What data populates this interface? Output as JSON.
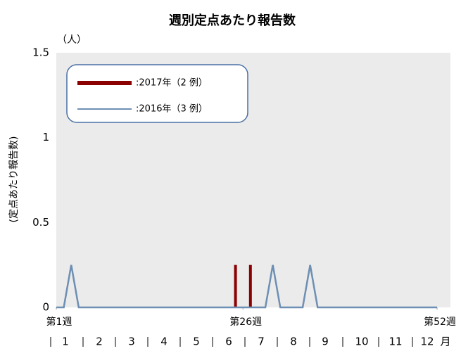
{
  "chart_data": {
    "type": "line",
    "title": "週別定点あたり報告数",
    "y_unit": "（人）",
    "y_label": "(定点あたり報告数)",
    "xlim": [
      1,
      52
    ],
    "xticks": [
      {
        "value": 1,
        "label": "第1週"
      },
      {
        "value": 26,
        "label": "第26週"
      },
      {
        "value": 52,
        "label": "第52週"
      }
    ],
    "ylim": [
      0,
      1.5
    ],
    "yticks": [
      0,
      0.5,
      1,
      1.5
    ],
    "month_labels": [
      "1",
      "2",
      "3",
      "4",
      "5",
      "6",
      "7",
      "8",
      "9",
      "10",
      "11",
      "12"
    ],
    "month_unit": "月",
    "series": [
      {
        "name": ":2017年（2 例）",
        "color": "#8b0000",
        "style": "bar",
        "x": [
          25,
          27
        ],
        "values": [
          0.25,
          0.25
        ]
      },
      {
        "name": ":2016年（3 例）",
        "color": "#6d8fb3",
        "style": "line",
        "x": [
          1,
          2,
          3,
          4,
          5,
          6,
          7,
          8,
          9,
          10,
          11,
          12,
          13,
          14,
          15,
          16,
          17,
          18,
          19,
          20,
          21,
          22,
          23,
          24,
          25,
          26,
          27,
          28,
          29,
          30,
          31,
          32,
          33,
          34,
          35,
          36,
          37,
          38,
          39,
          40,
          41,
          42,
          43,
          44,
          45,
          46,
          47,
          48,
          49,
          50,
          51,
          52
        ],
        "values": [
          0,
          0,
          0.25,
          0,
          0,
          0,
          0,
          0,
          0,
          0,
          0,
          0,
          0,
          0,
          0,
          0,
          0,
          0,
          0,
          0,
          0,
          0,
          0,
          0,
          0,
          0,
          0,
          0,
          0,
          0.25,
          0,
          0,
          0,
          0,
          0.25,
          0,
          0,
          0,
          0,
          0,
          0,
          0,
          0,
          0,
          0,
          0,
          0,
          0,
          0,
          0,
          0,
          0
        ]
      }
    ]
  }
}
